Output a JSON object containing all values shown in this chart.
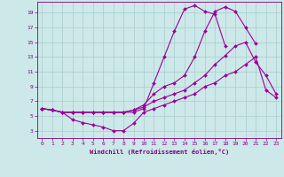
{
  "xlabel": "Windchill (Refroidissement éolien,°C)",
  "xlim": [
    -0.5,
    23.5
  ],
  "ylim": [
    2.0,
    20.5
  ],
  "xticks": [
    0,
    1,
    2,
    3,
    4,
    5,
    6,
    7,
    8,
    9,
    10,
    11,
    12,
    13,
    14,
    15,
    16,
    17,
    18,
    19,
    20,
    21,
    22,
    23
  ],
  "yticks": [
    3,
    5,
    7,
    9,
    11,
    13,
    15,
    17,
    19
  ],
  "background_color": "#cce8e8",
  "grid_color": "#aacccc",
  "line_color": "#990099",
  "curves": [
    {
      "x": [
        0,
        1,
        2,
        3,
        4,
        5,
        6,
        7,
        8,
        9,
        10,
        11,
        12,
        13,
        14,
        15,
        16,
        17,
        18,
        19,
        20,
        21,
        22,
        23
      ],
      "y": [
        6.0,
        5.8,
        5.5,
        5.5,
        5.5,
        5.5,
        5.5,
        5.5,
        5.5,
        5.5,
        6.0,
        9.5,
        13.0,
        16.5,
        19.5,
        20.0,
        19.2,
        18.8,
        14.5,
        null,
        null,
        null,
        null,
        null
      ]
    },
    {
      "x": [
        0,
        1,
        2,
        3,
        4,
        5,
        6,
        7,
        8,
        9,
        10,
        11,
        12,
        13,
        14,
        15,
        16,
        17,
        18,
        19,
        20,
        21,
        22,
        23
      ],
      "y": [
        6.0,
        5.8,
        5.5,
        5.5,
        5.5,
        5.5,
        5.5,
        5.5,
        5.5,
        5.8,
        6.5,
        8.0,
        9.0,
        9.5,
        10.5,
        13.0,
        16.5,
        19.2,
        19.8,
        19.2,
        17.0,
        14.8,
        null,
        null
      ]
    },
    {
      "x": [
        0,
        1,
        2,
        3,
        4,
        5,
        6,
        7,
        8,
        9,
        10,
        11,
        12,
        13,
        14,
        15,
        16,
        17,
        18,
        19,
        20,
        21,
        22,
        23
      ],
      "y": [
        6.0,
        5.8,
        5.5,
        5.5,
        5.5,
        5.5,
        5.5,
        5.5,
        5.5,
        5.8,
        6.2,
        7.0,
        7.5,
        8.0,
        8.5,
        9.5,
        10.5,
        12.0,
        13.2,
        14.5,
        15.0,
        12.3,
        10.5,
        8.0
      ]
    },
    {
      "x": [
        0,
        1,
        2,
        3,
        4,
        5,
        6,
        7,
        8,
        9,
        10,
        11,
        12,
        13,
        14,
        15,
        16,
        17,
        18,
        19,
        20,
        21,
        22,
        23
      ],
      "y": [
        6.0,
        5.8,
        5.5,
        4.5,
        4.1,
        3.8,
        3.5,
        3.0,
        3.0,
        4.0,
        5.5,
        6.0,
        6.5,
        7.0,
        7.5,
        8.0,
        9.0,
        9.5,
        10.5,
        11.0,
        12.0,
        13.0,
        8.5,
        7.5
      ]
    }
  ]
}
